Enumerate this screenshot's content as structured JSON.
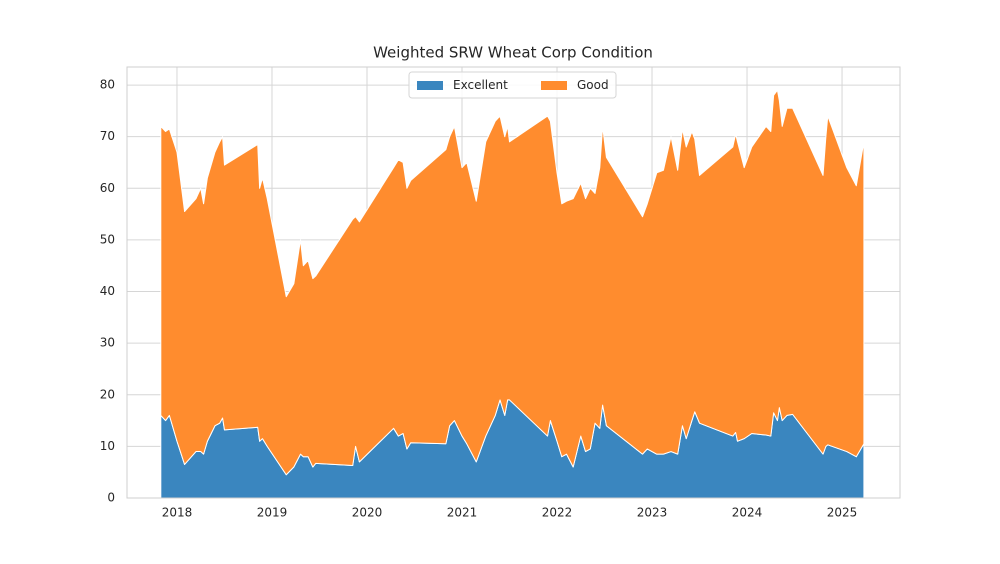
{
  "chart_data": {
    "type": "area",
    "stacked": true,
    "title": "Weighted SRW Wheat Corp Condition",
    "x": [
      2017.83,
      2017.88,
      2017.92,
      2018.0,
      2018.08,
      2018.2,
      2018.25,
      2018.28,
      2018.32,
      2018.4,
      2018.45,
      2018.48,
      2018.5,
      2018.85,
      2018.87,
      2018.9,
      2018.95,
      2019.15,
      2019.23,
      2019.3,
      2019.33,
      2019.38,
      2019.43,
      2019.46,
      2019.85,
      2019.88,
      2019.92,
      2020.28,
      2020.33,
      2020.38,
      2020.42,
      2020.46,
      2020.83,
      2020.87,
      2020.92,
      2021.0,
      2021.05,
      2021.15,
      2021.25,
      2021.35,
      2021.4,
      2021.45,
      2021.48,
      2021.5,
      2021.9,
      2021.93,
      2022.0,
      2022.05,
      2022.1,
      2022.17,
      2022.25,
      2022.3,
      2022.35,
      2022.4,
      2022.45,
      2022.48,
      2022.52,
      2022.9,
      2022.95,
      2023.05,
      2023.12,
      2023.2,
      2023.27,
      2023.32,
      2023.36,
      2023.42,
      2023.45,
      2023.5,
      2023.85,
      2023.88,
      2023.9,
      2023.97,
      2024.05,
      2024.2,
      2024.25,
      2024.28,
      2024.32,
      2024.34,
      2024.37,
      2024.42,
      2024.48,
      2024.8,
      2024.83,
      2024.85,
      2025.05,
      2025.15,
      2025.23
    ],
    "series": [
      {
        "name": "Excellent",
        "color": "#3a86bf",
        "values": [
          16,
          15,
          16,
          11,
          6.5,
          9,
          9,
          8.5,
          11,
          14,
          14.5,
          15.5,
          13.2,
          13.7,
          11,
          11.5,
          10,
          4.5,
          6,
          8.5,
          8,
          8,
          6,
          6.7,
          6.3,
          10,
          7,
          13.5,
          12,
          12.5,
          9.5,
          10.7,
          10.5,
          14,
          15,
          12,
          10.5,
          7,
          12,
          16,
          19,
          16,
          19,
          19,
          12,
          15,
          11,
          8,
          8.5,
          6,
          12,
          9,
          9.5,
          14.5,
          13.5,
          18,
          14,
          8.5,
          9.5,
          8.5,
          8.5,
          9,
          8.5,
          14,
          11.5,
          15,
          16.7,
          14.5,
          12,
          12.7,
          11,
          11.5,
          12.5,
          12.2,
          12,
          16.5,
          15,
          17.5,
          15,
          16,
          16.2,
          8.5,
          10,
          10.3,
          9,
          8,
          10.5
        ]
      },
      {
        "name": "Good",
        "color": "#ff8c2e",
        "values": [
          56,
          56,
          55.5,
          56,
          49,
          49,
          51,
          48.5,
          51,
          53,
          54.5,
          54.5,
          51.3,
          54.8,
          49,
          50.5,
          48,
          34.5,
          35.5,
          41.5,
          37,
          38,
          36.5,
          36.3,
          47.7,
          44.5,
          46.5,
          50.5,
          53.5,
          52.5,
          50.5,
          50.8,
          57,
          56,
          57,
          52,
          54.5,
          50.5,
          57,
          57,
          55,
          54,
          53,
          50,
          62,
          58,
          52,
          49,
          49,
          52,
          49,
          49,
          50.5,
          44.5,
          50.5,
          54,
          52,
          46,
          47.5,
          54.5,
          55,
          61,
          55,
          57.5,
          56.5,
          56,
          52.8,
          48,
          56,
          57.8,
          58,
          52.5,
          55.5,
          59.8,
          59,
          61.5,
          64,
          59.5,
          57,
          59.5,
          59.3,
          54,
          60,
          63.7,
          55,
          52.5,
          58.5
        ]
      }
    ],
    "xlim": [
      2017.474,
      2025.61
    ],
    "xticks": [
      2018,
      2019,
      2020,
      2021,
      2022,
      2023,
      2024,
      2025
    ],
    "ylim": [
      0,
      83.5
    ],
    "yticks": [
      0,
      10,
      20,
      30,
      40,
      50,
      60,
      70,
      80
    ],
    "grid": true,
    "legend": "upper center"
  }
}
